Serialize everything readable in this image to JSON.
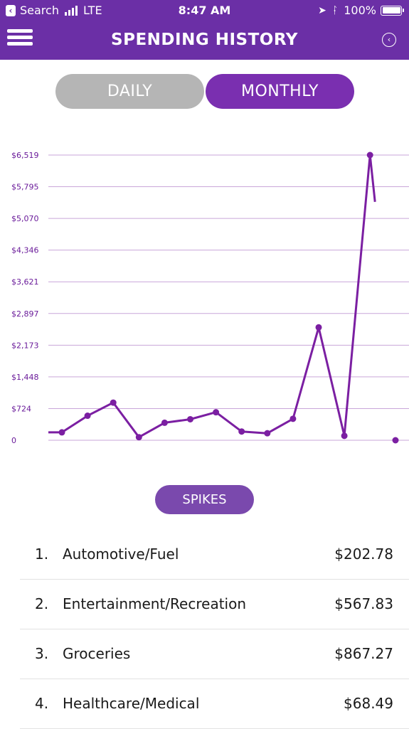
{
  "status_bar": {
    "carrier": "Search",
    "network": "LTE",
    "time": "8:47 AM",
    "battery": "100%"
  },
  "nav": {
    "title": "SPENDING HISTORY"
  },
  "toggle": {
    "daily": "DAILY",
    "monthly": "MONTHLY"
  },
  "chart_data": {
    "type": "line",
    "y_ticks": [
      "$6,519",
      "$5,795",
      "$5,070",
      "$4,346",
      "$3,621",
      "$2,897",
      "$2,173",
      "$1,448",
      "$724",
      "0"
    ],
    "ylim": [
      0,
      6519
    ],
    "series": [
      {
        "values": [
          180,
          180,
          560,
          860,
          70,
          400,
          480,
          640,
          200,
          160,
          490,
          2580,
          100,
          6519,
          5450,
          0
        ]
      }
    ],
    "colors": {
      "line": "#7b1fa2",
      "grid": "#c9a6d9"
    },
    "grid": true
  },
  "spikes": {
    "button": "SPIKES",
    "items": [
      {
        "num": "1.",
        "category": "Automotive/Fuel",
        "amount": "$202.78"
      },
      {
        "num": "2.",
        "category": "Entertainment/Recreation",
        "amount": "$567.83"
      },
      {
        "num": "3.",
        "category": "Groceries",
        "amount": "$867.27"
      },
      {
        "num": "4.",
        "category": "Healthcare/Medical",
        "amount": "$68.49"
      }
    ]
  }
}
